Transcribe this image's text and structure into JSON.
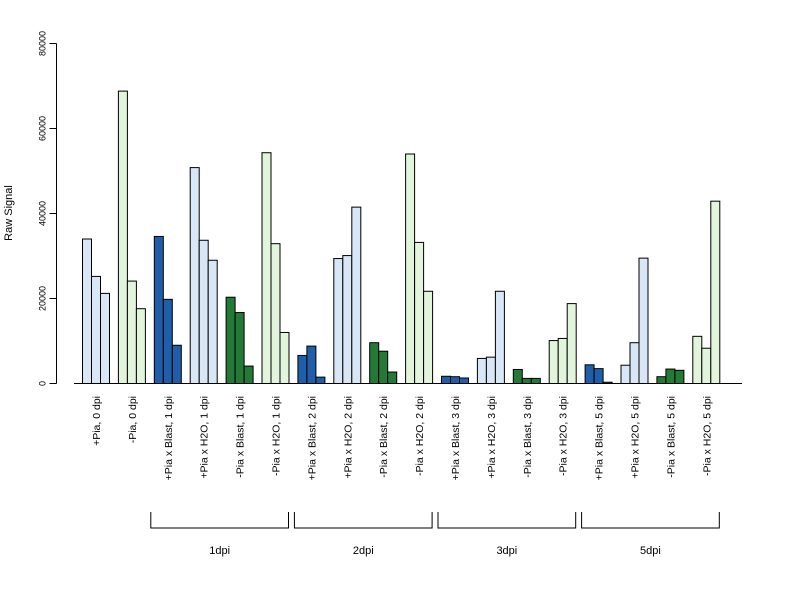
{
  "chart_data": {
    "type": "bar",
    "ylabel": "Raw Signal",
    "xlabel": "",
    "title": "",
    "ylim": [
      0,
      80000
    ],
    "yticks": [
      0,
      20000,
      40000,
      60000,
      80000
    ],
    "grid": false,
    "categories": [
      "+Pia, 0 dpi",
      "-Pia, 0 dpi",
      "+Pia x Blast, 1 dpi",
      "+Pia x H2O, 1 dpi",
      "-Pia x Blast, 1 dpi",
      "-Pia x H2O, 1 dpi",
      "+Pia x Blast, 2 dpi",
      "+Pia x H2O, 2 dpi",
      "-Pia x Blast, 2 dpi",
      "-Pia x H2O, 2 dpi",
      "+Pia x Blast, 3 dpi",
      "+Pia x H2O, 3 dpi",
      "-Pia x Blast, 3 dpi",
      "-Pia x H2O, 3 dpi",
      "+Pia x Blast, 5 dpi",
      "+Pia x H2O, 5 dpi",
      "-Pia x Blast, 5 dpi",
      "-Pia x H2O, 5 dpi"
    ],
    "values": [
      [
        34000,
        25200,
        21200
      ],
      [
        68800,
        24100,
        17600
      ],
      [
        34600,
        19800,
        9000
      ],
      [
        50800,
        33700,
        29000
      ],
      [
        20300,
        16700,
        4100
      ],
      [
        54300,
        32900,
        12000
      ],
      [
        6600,
        8800,
        1500
      ],
      [
        29400,
        30100,
        41500
      ],
      [
        9600,
        7600,
        2700
      ],
      [
        54000,
        33200,
        21700
      ],
      [
        1700,
        1600,
        1300
      ],
      [
        5900,
        6200,
        21700
      ],
      [
        3300,
        1200,
        1200
      ],
      [
        10100,
        10600,
        18800
      ],
      [
        4400,
        3500,
        300
      ],
      [
        4300,
        9600,
        29500
      ],
      [
        1600,
        3400,
        3100
      ],
      [
        11100,
        8300,
        42900
      ]
    ],
    "bar_colors": [
      "#d8e6f5",
      "#e2f5dc",
      "#1f5ea8",
      "#d8e6f5",
      "#237a36",
      "#e2f5dc",
      "#1f5ea8",
      "#d8e6f5",
      "#237a36",
      "#e2f5dc",
      "#1f5ea8",
      "#d8e6f5",
      "#237a36",
      "#e2f5dc",
      "#1f5ea8",
      "#d8e6f5",
      "#237a36",
      "#e2f5dc"
    ],
    "groups": [
      {
        "label": "1dpi",
        "start": 2,
        "end": 5
      },
      {
        "label": "2dpi",
        "start": 6,
        "end": 9
      },
      {
        "label": "3dpi",
        "start": 10,
        "end": 13
      },
      {
        "label": "5dpi",
        "start": 14,
        "end": 17
      }
    ]
  }
}
